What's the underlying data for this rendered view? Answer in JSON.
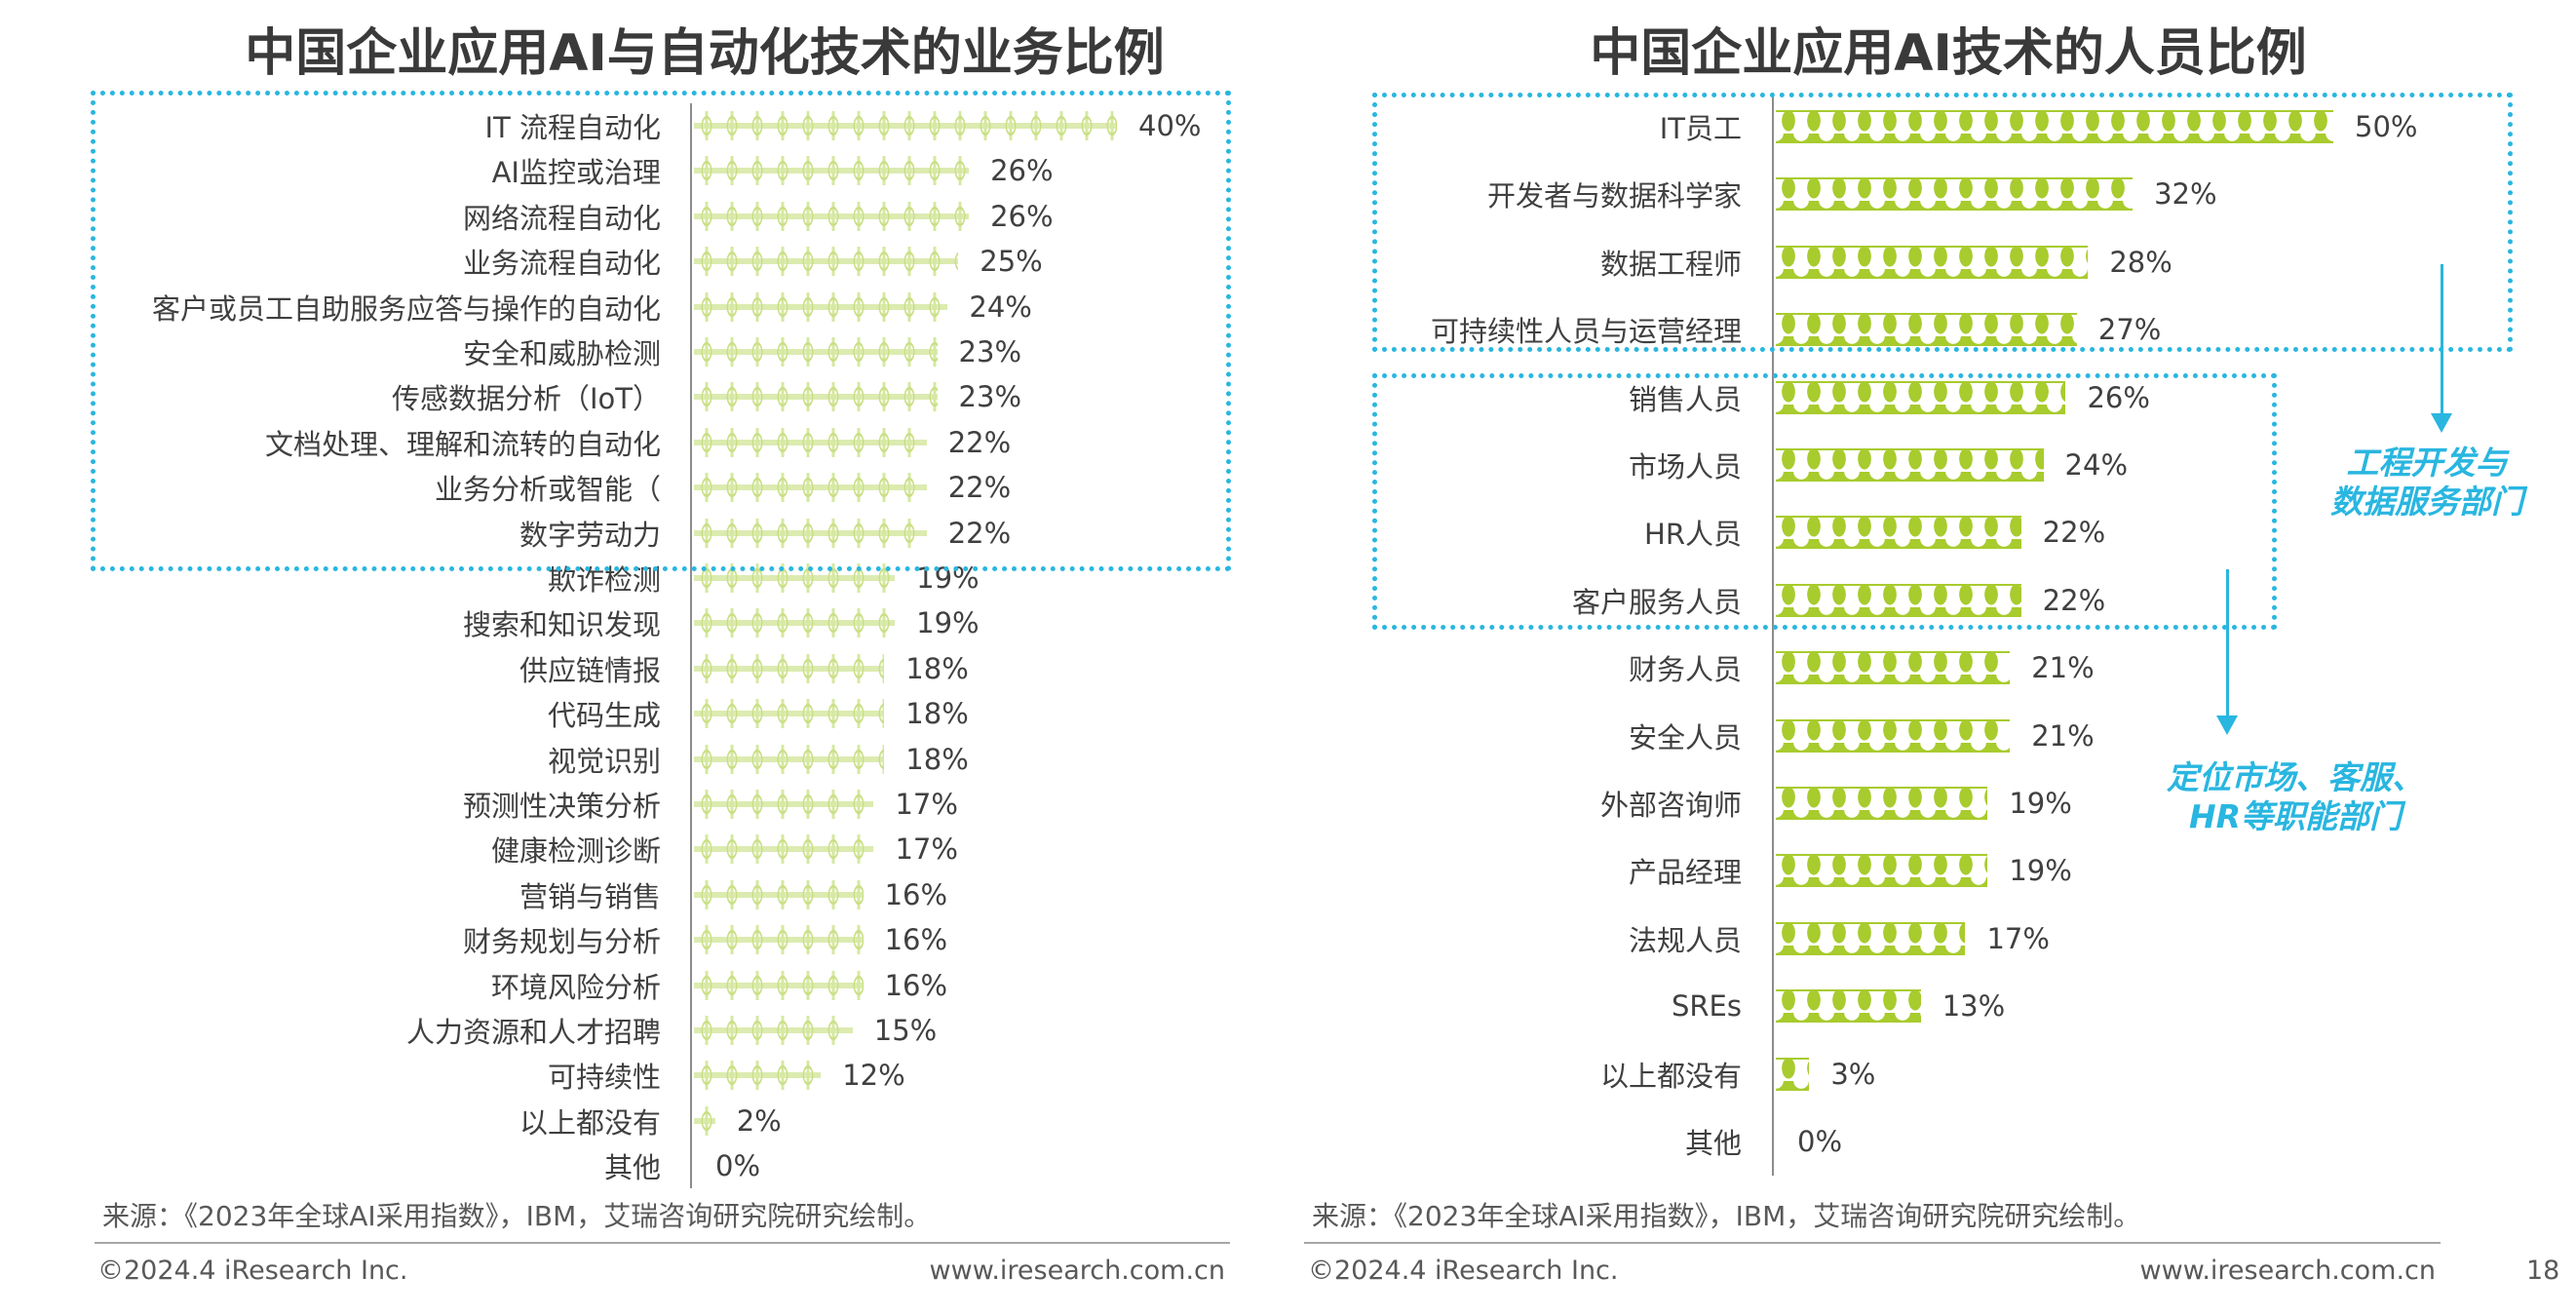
{
  "chart_data": [
    {
      "type": "bar",
      "orientation": "horizontal",
      "title": "中国企业应用AI与自动化技术的业务比例",
      "categories": [
        "IT 流程自动化",
        "AI监控或治理",
        "网络流程自动化",
        "业务流程自动化",
        "客户或员工自助服务应答与操作的自动化",
        "安全和威胁检测",
        "传感数据分析（IoT）",
        "文档处理、理解和流转的自动化",
        "业务分析或智能（",
        "数字劳动力",
        "欺诈检测",
        "搜索和知识发现",
        "供应链情报",
        "代码生成",
        "视觉识别",
        "预测性决策分析",
        "健康检测诊断",
        "营销与销售",
        "财务规划与分析",
        "环境风险分析",
        "人力资源和人才招聘",
        "可持续性",
        "以上都没有",
        "其他"
      ],
      "values": [
        40,
        26,
        26,
        25,
        24,
        23,
        23,
        22,
        22,
        22,
        19,
        19,
        18,
        18,
        18,
        17,
        17,
        16,
        16,
        16,
        15,
        12,
        2,
        0
      ],
      "labels": [
        "40%",
        "26%",
        "26%",
        "25%",
        "24%",
        "23%",
        "23%",
        "22%",
        "22%",
        "22%",
        "19%",
        "19%",
        "18%",
        "18%",
        "18%",
        "17%",
        "17%",
        "16%",
        "16%",
        "16%",
        "15%",
        "12%",
        "2%",
        "0%"
      ],
      "unit": "%",
      "highlight_top_n": 10,
      "bar_color": "#c9df85"
    },
    {
      "type": "bar",
      "orientation": "horizontal",
      "title": "中国企业应用AI技术的人员比例",
      "categories": [
        "IT员工",
        "开发者与数据科学家",
        "数据工程师",
        "可持续性人员与运营经理",
        "销售人员",
        "市场人员",
        "HR人员",
        "客户服务人员",
        "财务人员",
        "安全人员",
        "外部咨询师",
        "产品经理",
        "法规人员",
        "SREs",
        "以上都没有",
        "其他"
      ],
      "values": [
        50,
        32,
        28,
        27,
        26,
        24,
        22,
        22,
        21,
        21,
        19,
        19,
        17,
        13,
        3,
        0
      ],
      "labels": [
        "50%",
        "32%",
        "28%",
        "27%",
        "26%",
        "24%",
        "22%",
        "22%",
        "21%",
        "21%",
        "19%",
        "19%",
        "17%",
        "13%",
        "3%",
        "0%"
      ],
      "unit": "%",
      "bar_color": "#a8cb2e",
      "annotations": [
        "工程开发与",
        "数据服务部门",
        "定位市场、客服、",
        "HR等职能部门"
      ]
    }
  ],
  "colors": {
    "accent": "#29b6e0"
  },
  "footer": {
    "source": "来源：《2023年全球AI采用指数》，IBM，艾瑞咨询研究院研究绘制。",
    "copyright": "©2024.4 iResearch Inc.",
    "website": "www.iresearch.com.cn",
    "page_number": "18"
  }
}
